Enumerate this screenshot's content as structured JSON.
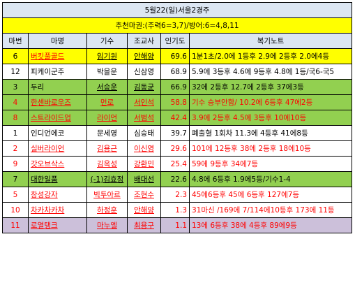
{
  "title": "5월22(일)서울2경주",
  "recommendation": "추천마권:(주력6=3,7)/방어:6=4,8,11",
  "headers": {
    "number": "마번",
    "horse": "마명",
    "jockey": "기수",
    "trainer": "조교사",
    "popularity": "인기도",
    "notes": "복기노트"
  },
  "rows": [
    {
      "number": "6",
      "horse": "버킷풀골드",
      "jockey": "임기원",
      "trainer": "안해양",
      "popularity": "69.6",
      "notes": "1분1초/2.0에 1등후 2.9에 2등후 2.0에4등"
    },
    {
      "number": "12",
      "horse": "피케이군주",
      "jockey": "박을운",
      "trainer": "신삼영",
      "popularity": "68.9",
      "notes": "5.9에 3등후 4.6에 9등후 4.8에 1등/국6-국5"
    },
    {
      "number": "3",
      "horse": "두리",
      "jockey": "서승운",
      "trainer": "김동균",
      "popularity": "66.9",
      "notes": "32에 2등후 12.7에 2등후 37에3등"
    },
    {
      "number": "4",
      "horse": "한센바로우즈",
      "jockey": "먼로",
      "trainer": "서인석",
      "popularity": "58.8",
      "notes": "기수 승부안함/ 10.2에 6등후 47에2등"
    },
    {
      "number": "8",
      "horse": "스트라이드업",
      "jockey": "라이언",
      "trainer": "서범석",
      "popularity": "42.4",
      "notes": " 3.9에 2등후 4.5에 3등후 10에10등"
    },
    {
      "number": "1",
      "horse": "인디언에코",
      "jockey": "문세영",
      "trainer": "심승태",
      "popularity": "39.7",
      "notes": "폐출혈 1회차 11.3에 4등후 41에8등"
    },
    {
      "number": "2",
      "horse": "실버라이언",
      "jockey": "김용근",
      "trainer": "이신영",
      "popularity": "29.6",
      "notes": "101에 12등후 38에 2등후 18에10등"
    },
    {
      "number": "9",
      "horse": "갓오브삭스",
      "jockey": "김옥성",
      "trainer": "강환민",
      "popularity": "25.4",
      "notes": " 59에 9등후 34에7등"
    },
    {
      "number": "7",
      "horse": "대한일품",
      "jockey": "(-1)김효정",
      "trainer": "배대선",
      "popularity": "22.6",
      "notes": "4.8에 6등후 1.9에5등/기수1-4"
    },
    {
      "number": "5",
      "horse": "창성강자",
      "jockey": "빅투아르",
      "trainer": "조현수",
      "popularity": "2.3",
      "notes": "45에6등후 45에 6등후 127에7등"
    },
    {
      "number": "10",
      "horse": "차카차카차",
      "jockey": "하정훈",
      "trainer": "안해양",
      "popularity": "1.3",
      "notes": "31마신 /169에 7/114에10등후 173에 11등"
    },
    {
      "number": "11",
      "horse": "로열탱크",
      "jockey": "마누엘",
      "trainer": "최용구",
      "popularity": "1.1",
      "notes": "13에 6등후 38에 4등후 89에9등"
    }
  ],
  "colors": {
    "header_bg": "#dce6f2",
    "highlight_yellow": "#ffff00",
    "highlight_green": "#92d050",
    "highlight_lavender": "#ccc0da",
    "red_text": "#ff0000"
  }
}
